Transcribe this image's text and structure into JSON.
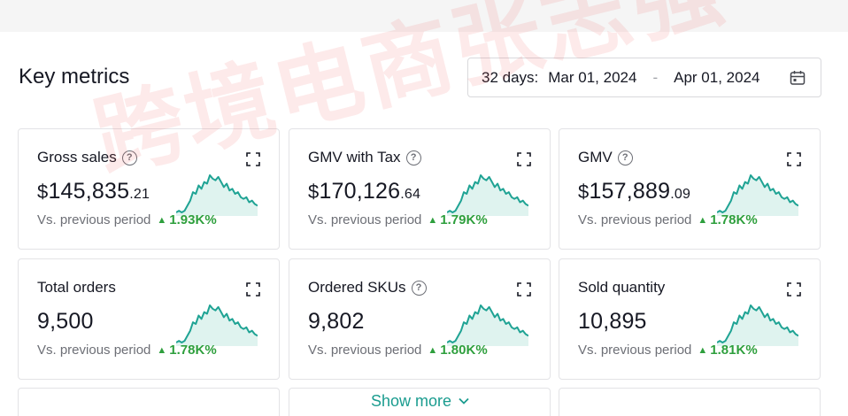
{
  "header": {
    "title": "Key metrics",
    "date_range": {
      "label": "32 days:",
      "start": "Mar 01, 2024",
      "separator": "-",
      "end": "Apr 01, 2024",
      "icon": "calendar-icon"
    }
  },
  "metrics": [
    {
      "title": "Gross sales",
      "has_help": true,
      "currency": "$",
      "value_main": "145,835",
      "value_cents": ".21",
      "compare_label": "Vs. previous period",
      "delta": "1.93K%"
    },
    {
      "title": "GMV with Tax",
      "has_help": true,
      "currency": "$",
      "value_main": "170,126",
      "value_cents": ".64",
      "compare_label": "Vs. previous period",
      "delta": "1.79K%"
    },
    {
      "title": "GMV",
      "has_help": true,
      "currency": "$",
      "value_main": "157,889",
      "value_cents": ".09",
      "compare_label": "Vs. previous period",
      "delta": "1.78K%"
    },
    {
      "title": "Total orders",
      "has_help": false,
      "currency": "",
      "value_main": "9,500",
      "value_cents": "",
      "compare_label": "Vs. previous period",
      "delta": "1.78K%"
    },
    {
      "title": "Ordered SKUs",
      "has_help": true,
      "currency": "",
      "value_main": "9,802",
      "value_cents": "",
      "compare_label": "Vs. previous period",
      "delta": "1.80K%"
    },
    {
      "title": "Sold quantity",
      "has_help": false,
      "currency": "",
      "value_main": "10,895",
      "value_cents": "",
      "compare_label": "Vs. previous period",
      "delta": "1.81K%"
    }
  ],
  "spark_values": [
    2,
    3,
    2,
    3,
    6,
    9,
    14,
    13,
    18,
    16,
    20,
    19,
    24,
    22,
    21,
    23,
    20,
    17,
    19,
    15,
    16,
    13,
    14,
    11,
    10,
    11,
    8,
    9,
    7,
    6
  ],
  "show_more": {
    "label": "Show more",
    "icon": "chevron-down-icon"
  },
  "watermark_text": "跨境电商张志强",
  "colors": {
    "accent": "#1a9c8f",
    "spark_line": "#1fa394",
    "spark_fill": "#dff3ef",
    "positive": "#2e9f3d"
  }
}
